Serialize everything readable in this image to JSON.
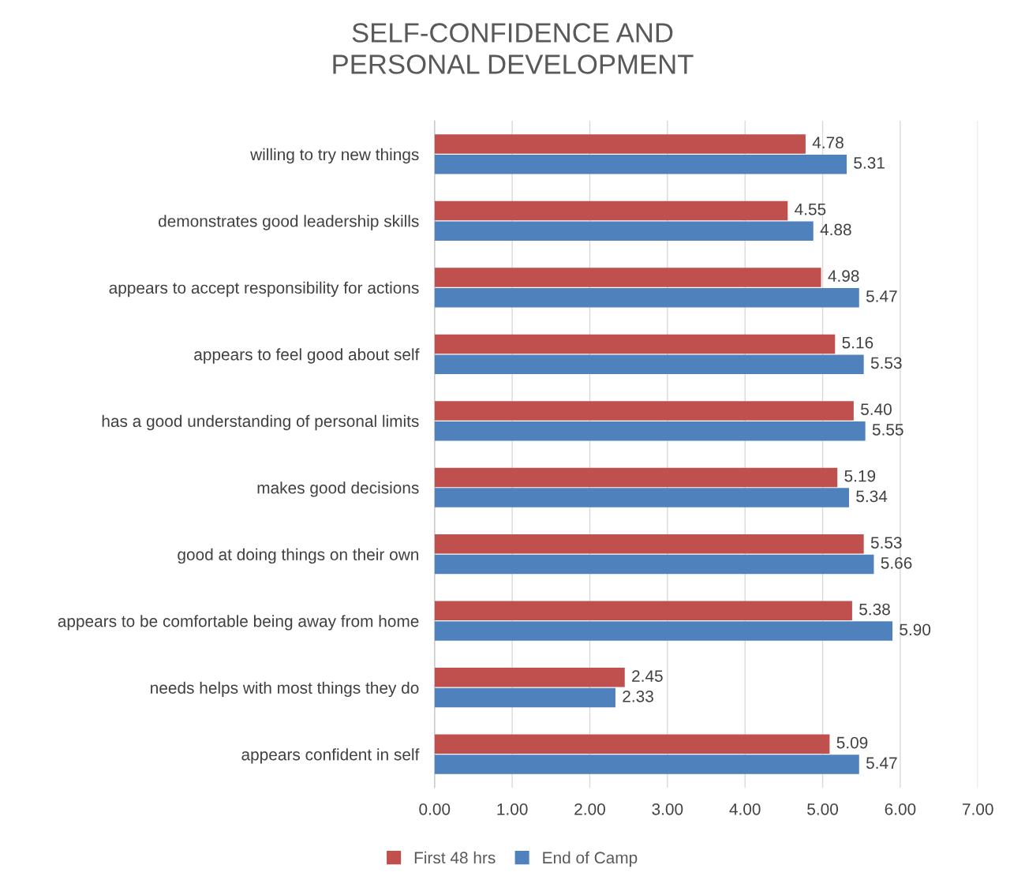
{
  "chart_data": {
    "type": "bar",
    "orientation": "horizontal",
    "title": "SELF-CONFIDENCE AND\nPERSONAL DEVELOPMENT",
    "categories": [
      "willing to try new things",
      "demonstrates good leadership skills",
      "appears to accept responsibility for actions",
      "appears to feel good about self",
      "has a good understanding of personal limits",
      "makes good decisions",
      "good at doing things on their own",
      "appears to be comfortable being away from home",
      "needs helps with most things they do",
      "appears confident in self"
    ],
    "series": [
      {
        "name": "First 48 hrs",
        "color": "#c0504d",
        "values": [
          4.78,
          4.55,
          4.98,
          5.16,
          5.4,
          5.19,
          5.53,
          5.38,
          2.45,
          5.09
        ],
        "value_labels": [
          "4.78",
          "4.55",
          "4.98",
          "5.16",
          "5.40",
          "5.19",
          "5.53",
          "5.38",
          "2.45",
          "5.09"
        ]
      },
      {
        "name": "End of Camp",
        "color": "#4f81bd",
        "values": [
          5.31,
          4.88,
          5.47,
          5.53,
          5.55,
          5.34,
          5.66,
          5.9,
          2.33,
          5.47
        ],
        "value_labels": [
          "5.31",
          "4.88",
          "5.47",
          "5.53",
          "5.55",
          "5.34",
          "5.66",
          "5.90",
          "2.33",
          "5.47"
        ]
      }
    ],
    "xlim": [
      0,
      7
    ],
    "xticks": [
      {
        "value": 0,
        "label": "0.00"
      },
      {
        "value": 1,
        "label": "1.00"
      },
      {
        "value": 2,
        "label": "2.00"
      },
      {
        "value": 3,
        "label": "3.00"
      },
      {
        "value": 4,
        "label": "4.00"
      },
      {
        "value": 5,
        "label": "5.00"
      },
      {
        "value": 6,
        "label": "6.00"
      },
      {
        "value": 7,
        "label": "7.00"
      }
    ],
    "grid": "x",
    "legend": "bottom"
  }
}
